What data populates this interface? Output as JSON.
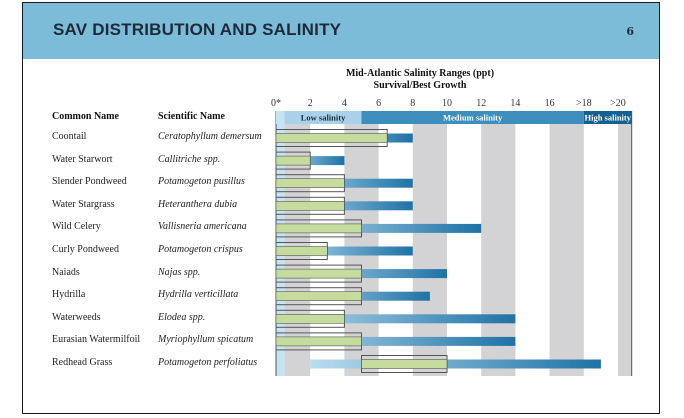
{
  "header": {
    "title": "SAV DISTRIBUTION AND SALINITY",
    "page_number": "6",
    "band_color": "#7dbcd9"
  },
  "table": {
    "columns": [
      "Common Name",
      "Scientific Name"
    ]
  },
  "chart_data": {
    "type": "bar",
    "title": "Mid-Atlantic Salinity Ranges (ppt)",
    "subtitle": "Survival/Best Growth",
    "xlabel": "",
    "ylabel": "",
    "x_ticks": [
      {
        "value": 0,
        "label": "0*"
      },
      {
        "value": 2,
        "label": "2"
      },
      {
        "value": 4,
        "label": "4"
      },
      {
        "value": 6,
        "label": "6"
      },
      {
        "value": 8,
        "label": "8"
      },
      {
        "value": 10,
        "label": "10"
      },
      {
        "value": 12,
        "label": "12"
      },
      {
        "value": 14,
        "label": "14"
      },
      {
        "value": 16,
        "label": "16"
      },
      {
        "value": 18,
        "label": ">18"
      },
      {
        "value": 20,
        "label": ">20"
      }
    ],
    "xlim": [
      0,
      20.8
    ],
    "zones": [
      {
        "label": "",
        "from": 0,
        "to": 0.5,
        "color": "#c5e3f3"
      },
      {
        "label": "Low salinity",
        "from": 0.5,
        "to": 5,
        "color": "#a9d2ea"
      },
      {
        "label": "Medium salinity",
        "from": 5,
        "to": 18,
        "color": "#3d8dbd"
      },
      {
        "label": "High salinity",
        "from": 18,
        "to": 20.8,
        "color": "#16608f"
      }
    ],
    "categories": [
      "Coontail",
      "Water Starwort",
      "Slender Pondweed",
      "Water Stargrass",
      "Wild Celery",
      "Curly Pondweed",
      "Naiads",
      "Hydrilla",
      "Waterweeds",
      "Eurasian Watermilfoil",
      "Redhead Grass"
    ],
    "scientific_names": [
      "Ceratophyllum demersum",
      "Callitriche spp.",
      "Potamogeton pusillus",
      "Heteranthera dubia",
      "Vallisneria americana",
      "Potamogeton crispus",
      "Najas spp.",
      "Hydrilla verticillata",
      "Elodea spp.",
      "Myriophyllum spicatum",
      "Potamogeton perfoliatus"
    ],
    "series": [
      {
        "name": "Survival range",
        "color": "#2e7fb3",
        "ranges": [
          [
            0,
            8
          ],
          [
            0,
            4
          ],
          [
            0,
            8
          ],
          [
            0,
            8
          ],
          [
            0,
            12
          ],
          [
            0,
            8
          ],
          [
            0,
            10
          ],
          [
            0,
            9
          ],
          [
            0,
            14
          ],
          [
            0,
            14
          ],
          [
            2,
            19
          ]
        ]
      },
      {
        "name": "Best growth",
        "color": "#c6dc9e",
        "ranges": [
          [
            0,
            6.5
          ],
          [
            0,
            2
          ],
          [
            0,
            4
          ],
          [
            0,
            4
          ],
          [
            0,
            5
          ],
          [
            0,
            3
          ],
          [
            0,
            5
          ],
          [
            0,
            5
          ],
          [
            0,
            4
          ],
          [
            0,
            5
          ],
          [
            5,
            10
          ]
        ]
      }
    ],
    "grid": "alternating vertical bands"
  }
}
